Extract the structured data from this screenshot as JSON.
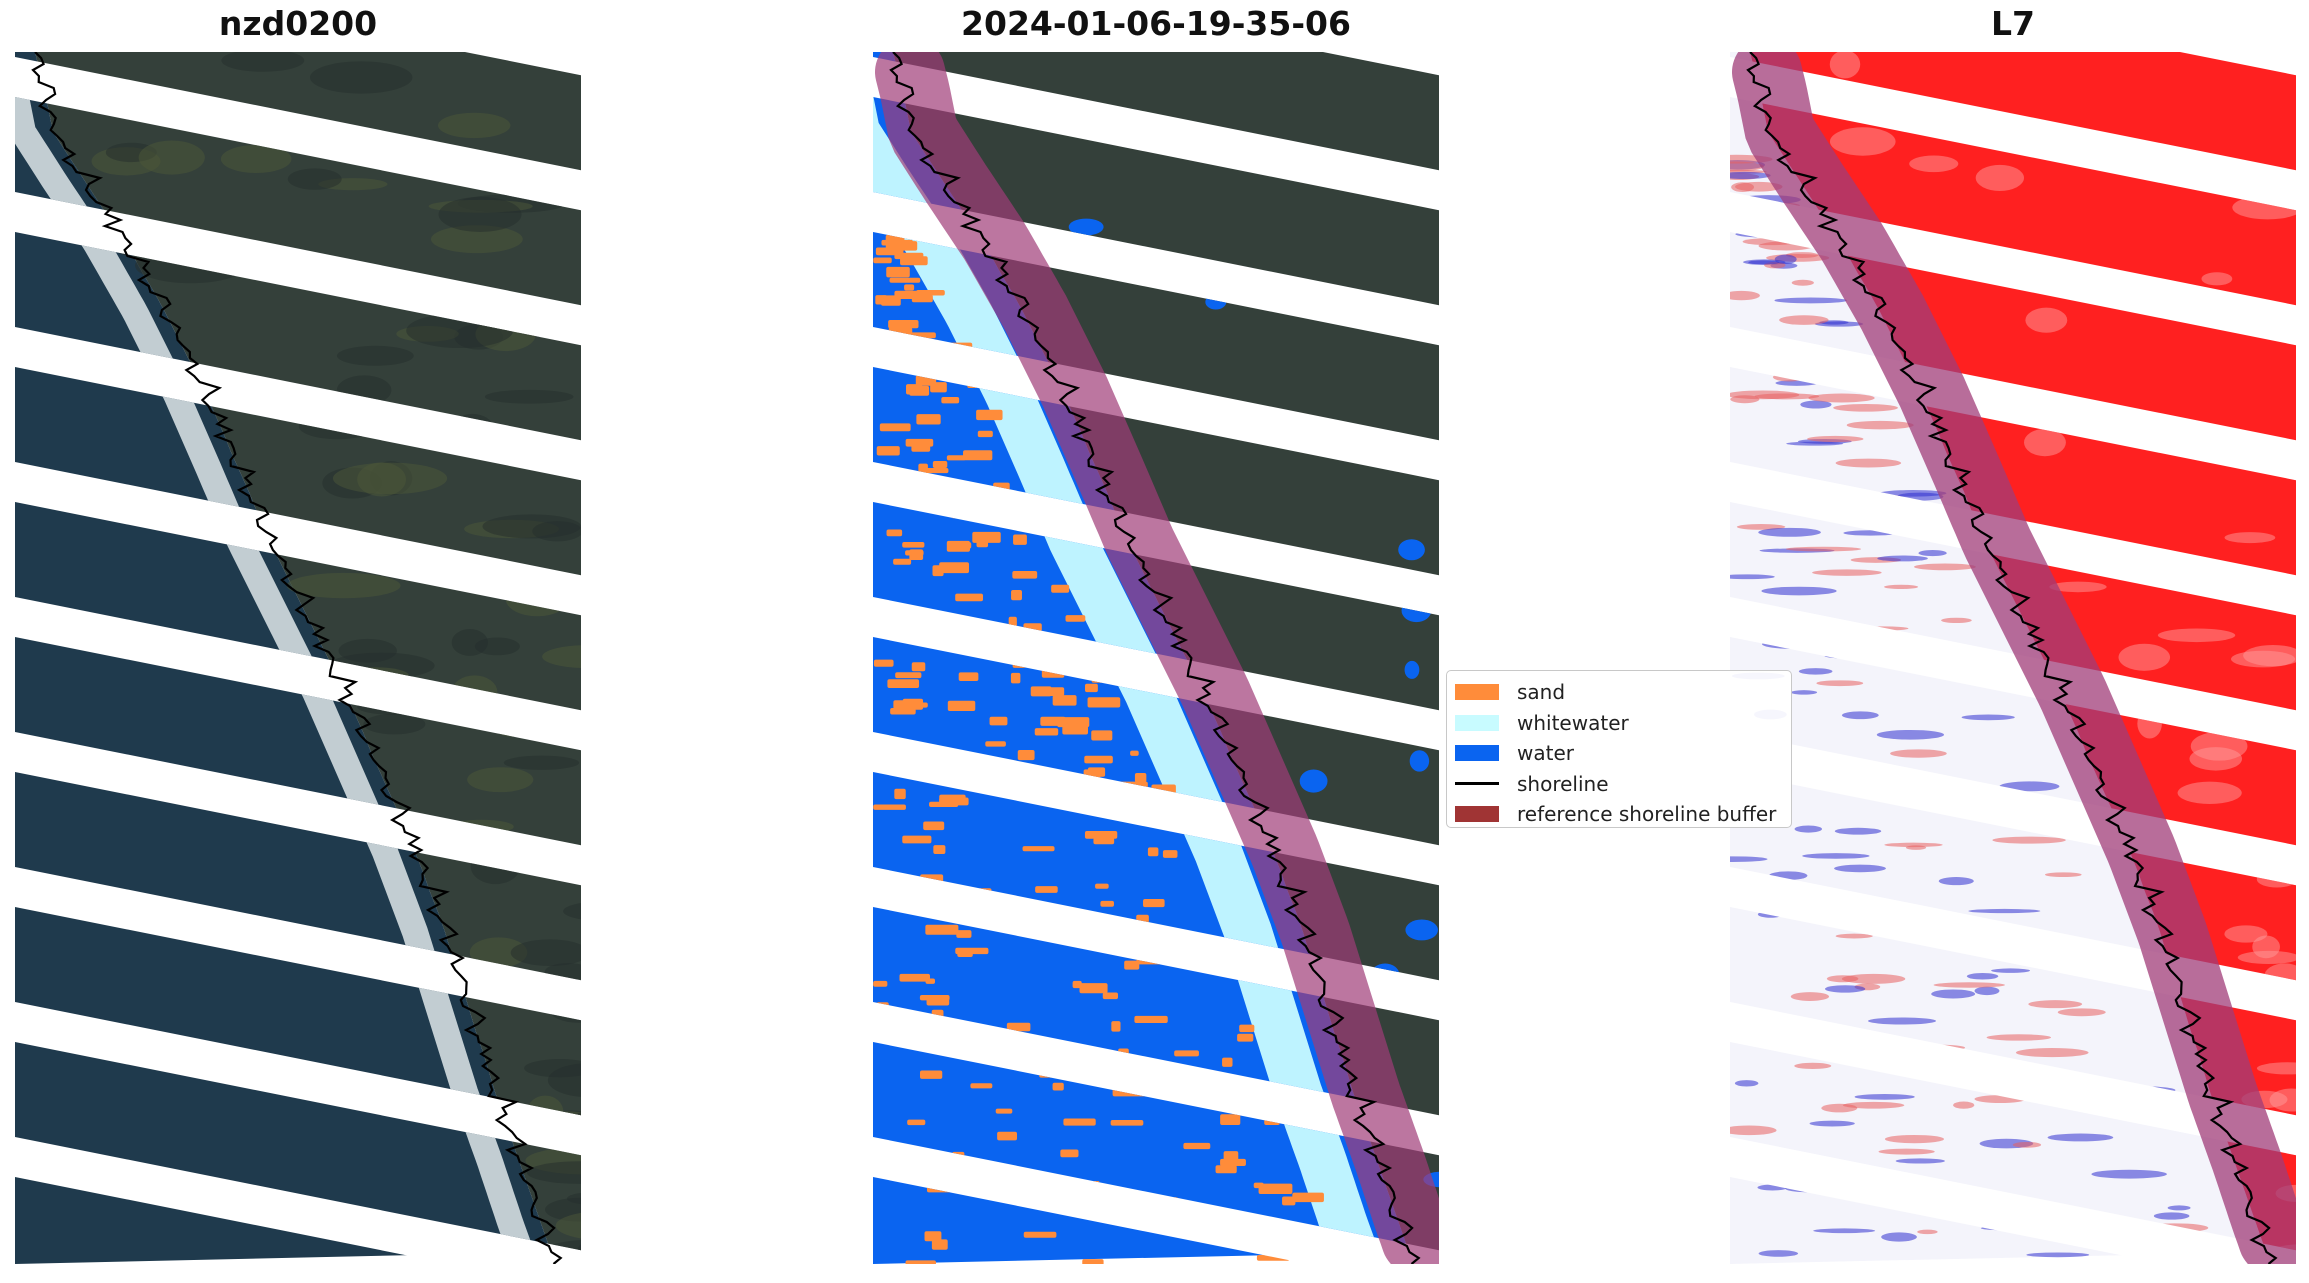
{
  "panels": [
    {
      "title": "nzd0200"
    },
    {
      "title": "2024-01-06-19-35-06"
    },
    {
      "title": "L7"
    }
  ],
  "legend": [
    {
      "label": "sand",
      "color": "#ff8c3a",
      "kind": "patch"
    },
    {
      "label": "whitewater",
      "color": "#c8fbff",
      "kind": "patch"
    },
    {
      "label": "water",
      "color": "#0a64f0",
      "kind": "patch"
    },
    {
      "label": "shoreline",
      "color": "#000000",
      "kind": "line"
    },
    {
      "label": "reference shoreline buffer",
      "color": "#a03434",
      "kind": "patch"
    }
  ],
  "colors": {
    "land": "#34403a",
    "ocean": "#1f3a4d",
    "surf": "#dfe7ea",
    "water_class": "#0a64f0",
    "whitewater_class": "#c8fbff",
    "sand_class": "#ff8c3a",
    "buffer": "#a03c78",
    "index_high": "#ff2020",
    "index_low": "#3030d0"
  }
}
